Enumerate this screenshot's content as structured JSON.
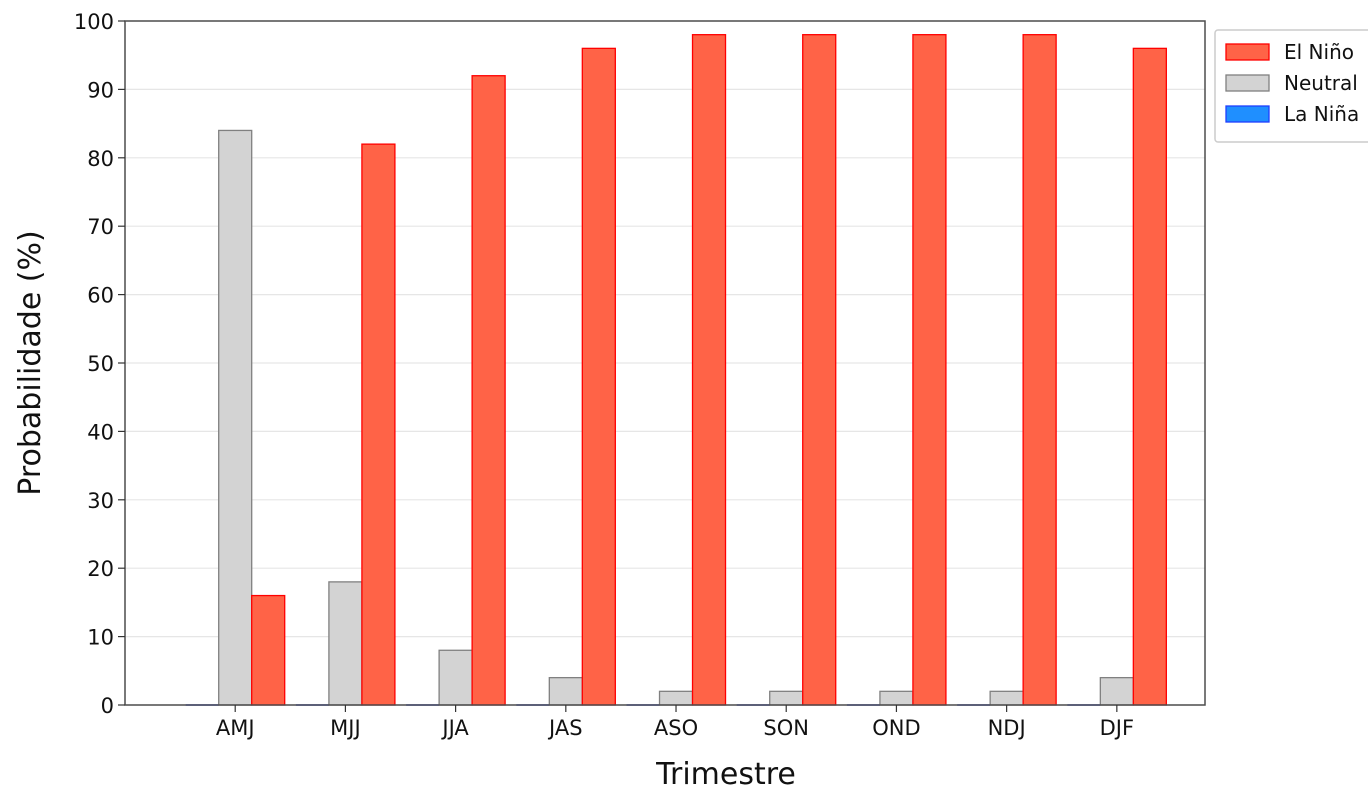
{
  "chart_data": {
    "type": "bar",
    "title": "",
    "xlabel": "Trimestre",
    "ylabel": "Probabilidade (%)",
    "ylim": [
      0,
      100
    ],
    "yticks": [
      0,
      10,
      20,
      30,
      40,
      50,
      60,
      70,
      80,
      90,
      100
    ],
    "grid": true,
    "legend_position": "outside-top-right",
    "categories": [
      "AMJ",
      "MJJ",
      "JJA",
      "JAS",
      "ASO",
      "SON",
      "OND",
      "NDJ",
      "DJF"
    ],
    "series": [
      {
        "name": "La Niña",
        "values": [
          0,
          0,
          0,
          0,
          0,
          0,
          0,
          0,
          0
        ],
        "color": "#1f8fff",
        "edge_color": "#1f3fff"
      },
      {
        "name": "Neutral",
        "values": [
          84,
          18,
          8,
          4,
          2,
          2,
          2,
          2,
          4
        ],
        "color": "#d3d3d3",
        "edge_color": "#808080"
      },
      {
        "name": "El Niño",
        "values": [
          16,
          82,
          92,
          96,
          98,
          98,
          98,
          98,
          96
        ],
        "color": "#ff6347",
        "edge_color": "#ff0000"
      }
    ],
    "legend_order": [
      "El Niño",
      "Neutral",
      "La Niña"
    ]
  }
}
